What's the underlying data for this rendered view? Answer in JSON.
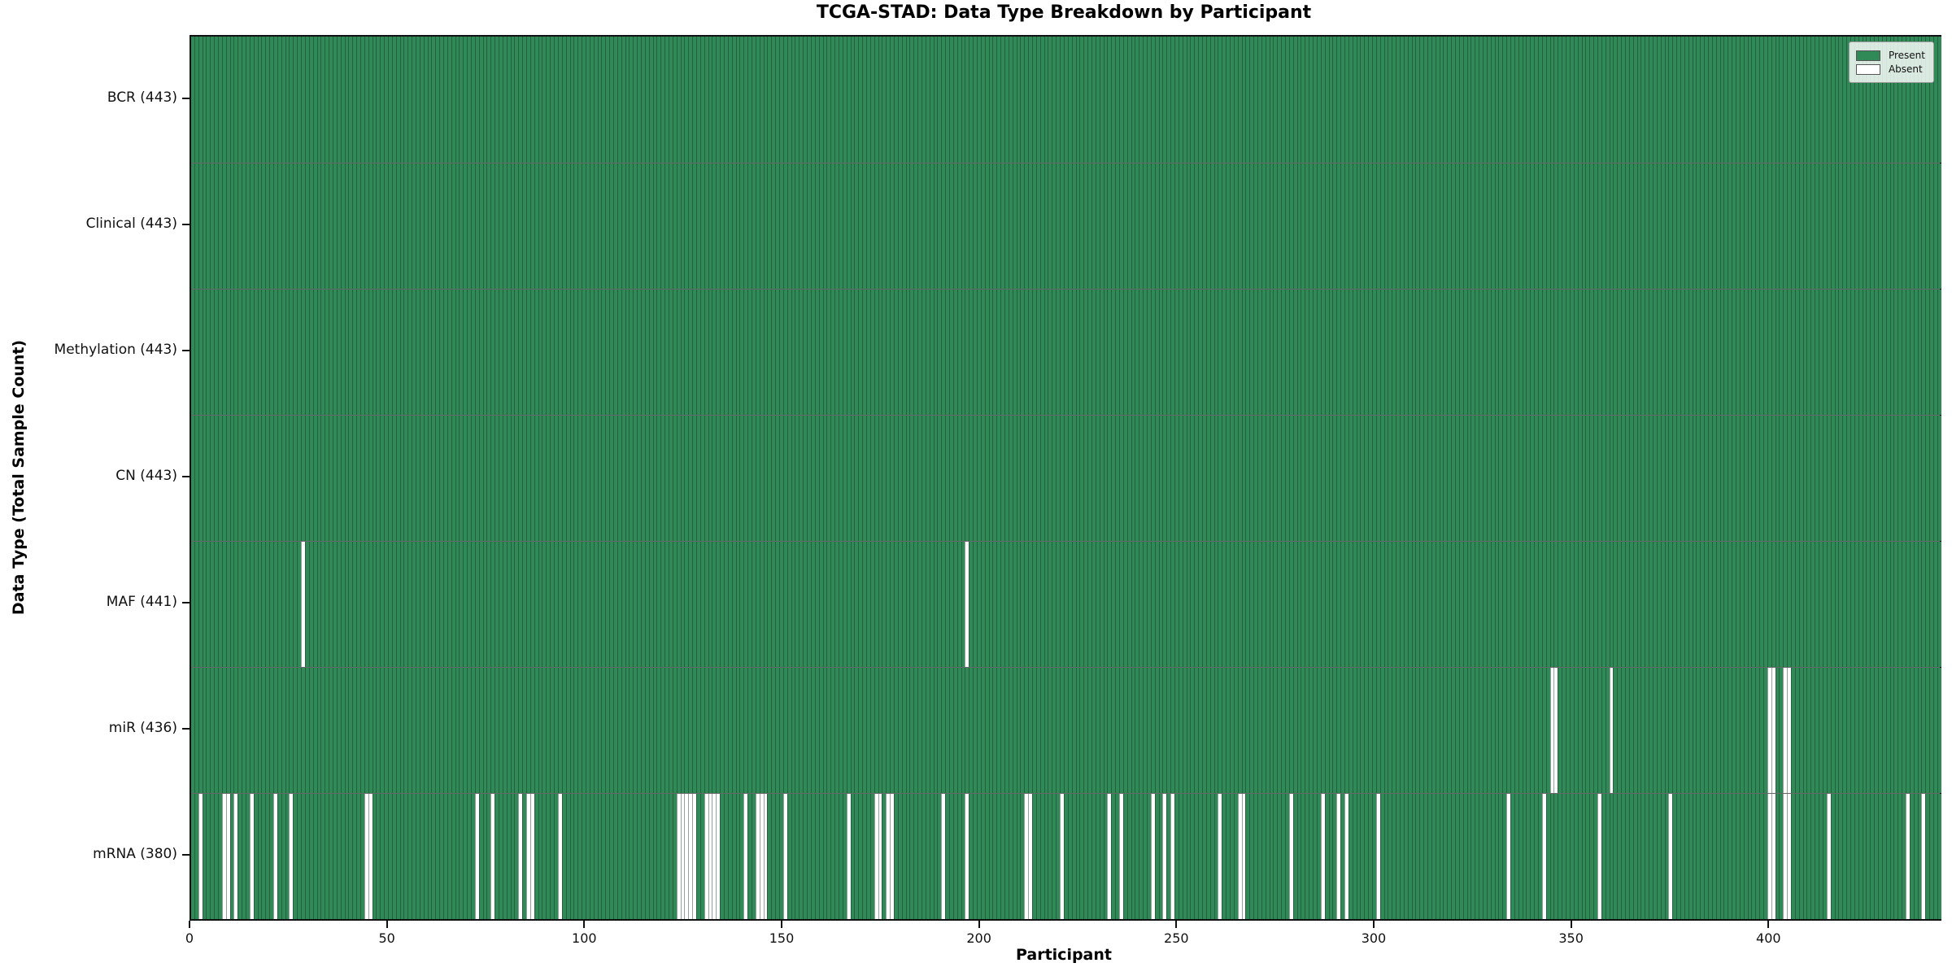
{
  "chart_data": {
    "type": "heatmap",
    "title": "TCGA-STAD: Data Type Breakdown by Participant",
    "xlabel": "Participant",
    "ylabel": "Data Type (Total Sample Count)",
    "n_participants": 443,
    "x_range": [
      0,
      443
    ],
    "x_ticks": [
      0,
      50,
      100,
      150,
      200,
      250,
      300,
      350,
      400
    ],
    "grid": false,
    "legend_position": "upper right",
    "legend": [
      {
        "label": "Present",
        "state": "present"
      },
      {
        "label": "Absent",
        "state": "absent"
      }
    ],
    "colors": {
      "present": "#2f8a57",
      "absent": "#ffffff",
      "cell_edge": "rgba(25,45,35,0.45)",
      "spine": "#111111"
    },
    "rows": [
      {
        "label": "BCR (443)",
        "data_type": "BCR",
        "total_sample_count": 443,
        "absent_participants": []
      },
      {
        "label": "Clinical (443)",
        "data_type": "Clinical",
        "total_sample_count": 443,
        "absent_participants": []
      },
      {
        "label": "Methylation (443)",
        "data_type": "Methylation",
        "total_sample_count": 443,
        "absent_participants": []
      },
      {
        "label": "CN (443)",
        "data_type": "CN",
        "total_sample_count": 443,
        "absent_participants": []
      },
      {
        "label": "MAF (441)",
        "data_type": "MAF",
        "total_sample_count": 441,
        "absent_participants": [
          28,
          196
        ]
      },
      {
        "label": "miR (436)",
        "data_type": "miR",
        "total_sample_count": 436,
        "absent_participants": [
          344,
          345,
          359,
          399,
          400,
          403,
          404
        ]
      },
      {
        "label": "mRNA (380)",
        "data_type": "mRNA",
        "total_sample_count": 380,
        "absent_participants": [
          2,
          8,
          9,
          11,
          15,
          21,
          25,
          44,
          45,
          72,
          76,
          83,
          85,
          86,
          93,
          123,
          124,
          125,
          126,
          127,
          130,
          131,
          132,
          133,
          140,
          143,
          144,
          145,
          150,
          166,
          173,
          174,
          176,
          177,
          190,
          196,
          211,
          212,
          220,
          232,
          235,
          243,
          246,
          248,
          260,
          265,
          266,
          278,
          286,
          290,
          292,
          300,
          333,
          342,
          356,
          374,
          399,
          400,
          403,
          404,
          414,
          434,
          438
        ]
      }
    ]
  }
}
